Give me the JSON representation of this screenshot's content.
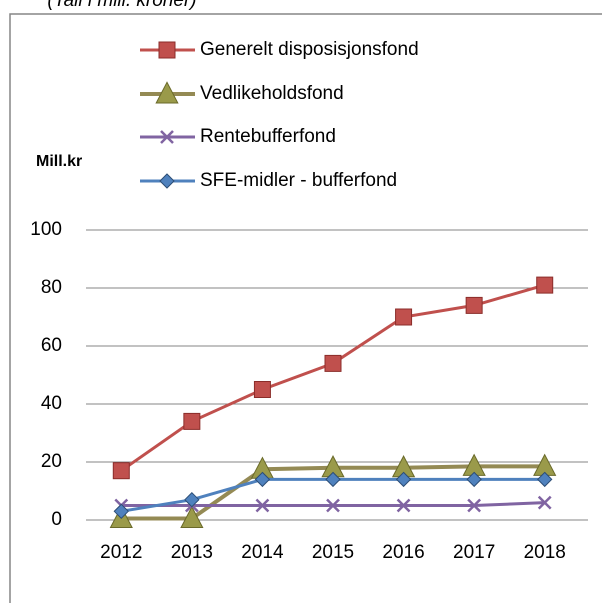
{
  "chart_data": {
    "type": "line",
    "title": "(Tall i mill. kroner)",
    "y_label": "Mill.kr",
    "categories": [
      "2012",
      "2013",
      "2014",
      "2015",
      "2016",
      "2017",
      "2018"
    ],
    "series": [
      {
        "name": "Generelt disposisjonsfond",
        "color": "#c0504d",
        "marker": "square",
        "values": [
          17,
          34,
          45,
          54,
          70,
          74,
          81
        ]
      },
      {
        "name": "Vedlikeholdsfond",
        "color": "#948a54",
        "marker": "triangle",
        "values": [
          0.5,
          0.5,
          17.5,
          18,
          18,
          18.5,
          18.5
        ]
      },
      {
        "name": "Rentebufferfond",
        "color": "#8064a2",
        "marker": "x",
        "values": [
          5,
          5,
          5,
          5,
          5,
          5,
          6
        ]
      },
      {
        "name": "SFE-midler - bufferfond",
        "color": "#4f81bd",
        "marker": "diamond",
        "values": [
          3,
          7,
          14,
          14,
          14,
          14,
          14
        ]
      }
    ],
    "ylim": [
      0,
      100
    ],
    "yticks": [
      0,
      20,
      40,
      60,
      80,
      100
    ],
    "grid": true,
    "legend": "top"
  }
}
